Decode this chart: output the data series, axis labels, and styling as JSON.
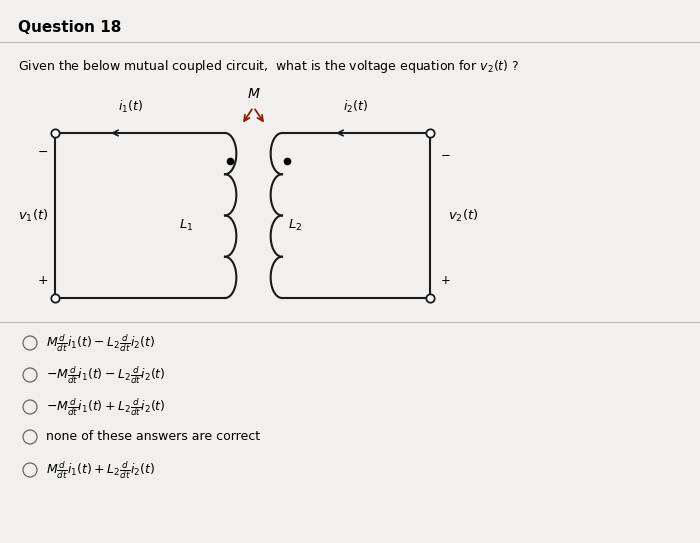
{
  "title": "Question 18",
  "question_text": "Given the below mutual coupled circuit,  what is the voltage equation for $v_2(t)$ ?",
  "bg_color": "#f2f0ee",
  "options": [
    "$M\\frac{d}{dt}i_1(t) - L_2\\frac{d}{dt}i_2(t)$",
    "$-M\\frac{d}{dt}i_1(t) - L_2\\frac{d}{dt}i_2(t)$",
    "$-M\\frac{d}{dt}i_1(t) + L_2\\frac{d}{dt}i_2(t)$",
    "none of these answers are correct",
    "$M\\frac{d}{dt}i_1(t) + L_2\\frac{d}{dt}i_2(t)$"
  ],
  "circuit_color": "#1a1a1a",
  "arrow_color": "#8B2000",
  "dot_color": "#1a1a1a",
  "title_fontsize": 11,
  "question_fontsize": 9,
  "option_fontsize": 9
}
